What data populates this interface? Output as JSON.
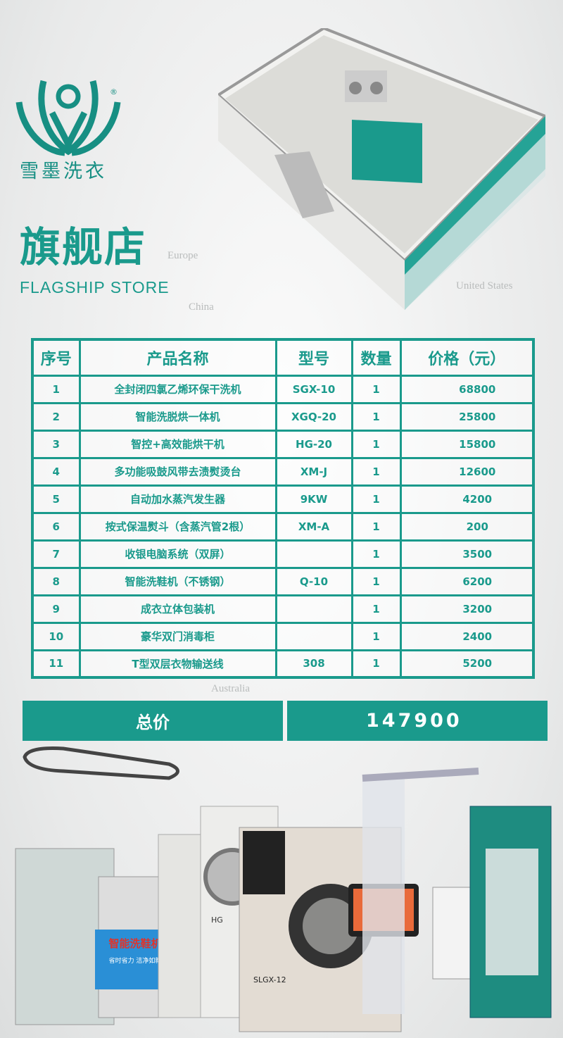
{
  "brand": {
    "name": "雪墨洗衣",
    "registered": "®"
  },
  "header": {
    "title": "旗舰店",
    "subtitle": "FLAGSHIP STORE"
  },
  "map_labels": [
    "Europe",
    "China",
    "United States",
    "Australia"
  ],
  "table": {
    "columns": [
      "序号",
      "产品名称",
      "型号",
      "数量",
      "价格（元）"
    ],
    "rows": [
      [
        "1",
        "全封闭四氯乙烯环保干洗机",
        "SGX-10",
        "1",
        "68800"
      ],
      [
        "2",
        "智能洗脱烘一体机",
        "XGQ-20",
        "1",
        "25800"
      ],
      [
        "3",
        "智控+高效能烘干机",
        "HG-20",
        "1",
        "15800"
      ],
      [
        "4",
        "多功能吸鼓风带去渍熨烫台",
        "XM-J",
        "1",
        "12600"
      ],
      [
        "5",
        "自动加水蒸汽发生器",
        "9KW",
        "1",
        "4200"
      ],
      [
        "6",
        "按式保温熨斗（含蒸汽管2根）",
        "XM-A",
        "1",
        "200"
      ],
      [
        "7",
        "收银电脑系统（双屏）",
        "",
        "1",
        "3500"
      ],
      [
        "8",
        "智能洗鞋机（不锈钢）",
        "Q-10",
        "1",
        "6200"
      ],
      [
        "9",
        "成衣立体包装机",
        "",
        "1",
        "3200"
      ],
      [
        "10",
        "豪华双门消毒柜",
        "",
        "1",
        "2400"
      ],
      [
        "11",
        "T型双层衣物输送线",
        "308",
        "1",
        "5200"
      ]
    ]
  },
  "total": {
    "label": "总价",
    "value": "147900"
  },
  "product_photo_labels": {
    "shoe_washer": "智能洗鞋机",
    "shoe_slogan": "省时省力 洁净如新",
    "dryer_model": "HG",
    "drycleaner_model": "SLGX-12"
  },
  "colors": {
    "teal": "#1a9a8c"
  }
}
